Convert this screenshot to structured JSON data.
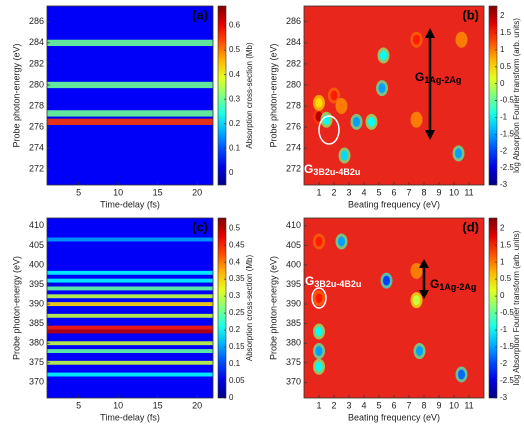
{
  "chart_data": [
    {
      "type": "heatmap",
      "title": "(a)",
      "xlabel": "Time-delay (fs)",
      "ylabel": "Probe photon-energy (eV)",
      "xlim": [
        1,
        22
      ],
      "xticks": [
        5,
        10,
        15,
        20
      ],
      "ylim": [
        270.5,
        287.5
      ],
      "yticks": [
        272,
        274,
        276,
        278,
        280,
        282,
        284,
        286
      ],
      "colorbar": {
        "label": "Absorption cross-section (Mb)",
        "lim": [
          -0.05,
          0.68
        ],
        "ticks": [
          0,
          0.1,
          0.2,
          0.3,
          0.4,
          0.5,
          0.6
        ]
      },
      "bands": [
        {
          "energy": 284,
          "value": 0.3
        },
        {
          "energy": 280,
          "value": 0.3
        },
        {
          "energy": 277.3,
          "value": 0.3
        },
        {
          "energy": 276.5,
          "value": 0.55
        }
      ]
    },
    {
      "type": "peaks",
      "title": "(b)",
      "xlabel": "Beating frequency (eV)",
      "ylabel": "Probe photon-energy (eV)",
      "xlim": [
        0,
        12
      ],
      "xticks": [
        1,
        2,
        3,
        4,
        5,
        6,
        7,
        8,
        9,
        10,
        11
      ],
      "ylim": [
        270.5,
        287.5
      ],
      "yticks": [
        272,
        274,
        276,
        278,
        280,
        282,
        284,
        286
      ],
      "colorbar": {
        "label": "log Absorption Fourier transform (arb. units)",
        "lim": [
          -3,
          2.3
        ],
        "ticks": [
          -3,
          -2.5,
          -2,
          -1.5,
          -1,
          -0.5,
          0,
          0.5,
          1,
          1.5,
          2
        ]
      },
      "peaks": [
        {
          "x": 1,
          "y": 277,
          "value": 2
        },
        {
          "x": 1,
          "y": 278.3,
          "value": 0.5
        },
        {
          "x": 2,
          "y": 279,
          "value": 1.5
        },
        {
          "x": 2.5,
          "y": 278,
          "value": 1
        },
        {
          "x": 1.5,
          "y": 276.7,
          "value": -1
        },
        {
          "x": 3.5,
          "y": 276.5,
          "value": -1.5
        },
        {
          "x": 7.5,
          "y": 284.3,
          "value": 1.5
        },
        {
          "x": 7.5,
          "y": 276.7,
          "value": 1
        },
        {
          "x": 10.5,
          "y": 284.3,
          "value": 1
        },
        {
          "x": 5.3,
          "y": 282.8,
          "value": -1
        },
        {
          "x": 4.5,
          "y": 276.5,
          "value": -1
        },
        {
          "x": 2.7,
          "y": 273.3,
          "value": -1.2
        },
        {
          "x": 10.3,
          "y": 273.5,
          "value": -1.5
        },
        {
          "x": 5.2,
          "y": 279.7,
          "value": -1.5
        }
      ],
      "annotations": [
        {
          "text": "G",
          "sub": "3B2u-4B2u"
        },
        {
          "text": "G",
          "sub": "1Ag-2Ag"
        }
      ]
    },
    {
      "type": "heatmap",
      "title": "(c)",
      "xlabel": "Time-delay (fs)",
      "ylabel": "Probe photon-energy (eV)",
      "xlim": [
        1,
        22
      ],
      "xticks": [
        5,
        10,
        15,
        20
      ],
      "ylim": [
        366,
        412
      ],
      "yticks": [
        370,
        375,
        380,
        385,
        390,
        395,
        400,
        405,
        410
      ],
      "colorbar": {
        "label": "Absorption cross-section (Mb)",
        "lim": [
          0,
          0.53
        ],
        "ticks": [
          0,
          0.05,
          0.1,
          0.15,
          0.2,
          0.25,
          0.3,
          0.35,
          0.4,
          0.45,
          0.5
        ]
      },
      "bands": [
        {
          "energy": 406.5,
          "value": 0.15
        },
        {
          "energy": 398,
          "value": 0.2
        },
        {
          "energy": 396,
          "value": 0.2
        },
        {
          "energy": 394,
          "value": 0.25
        },
        {
          "energy": 392,
          "value": 0.3
        },
        {
          "energy": 390,
          "value": 0.35
        },
        {
          "energy": 387,
          "value": 0.3
        },
        {
          "energy": 384,
          "value": 0.45
        },
        {
          "energy": 383,
          "value": 0.5
        },
        {
          "energy": 380,
          "value": 0.3
        },
        {
          "energy": 378,
          "value": 0.25
        },
        {
          "energy": 375,
          "value": 0.3
        },
        {
          "energy": 372,
          "value": 0.2
        }
      ]
    },
    {
      "type": "peaks",
      "title": "(d)",
      "xlabel": "Beating frequency (eV)",
      "ylabel": "Probe photon-energy (eV)",
      "xlim": [
        0,
        12
      ],
      "xticks": [
        1,
        2,
        3,
        4,
        5,
        6,
        7,
        8,
        9,
        10,
        11
      ],
      "ylim": [
        366,
        412
      ],
      "yticks": [
        370,
        375,
        380,
        385,
        390,
        395,
        400,
        405,
        410
      ],
      "colorbar": {
        "label": "log Absorption Fourier transform (arb. units)",
        "lim": [
          -3,
          2.3
        ],
        "ticks": [
          -3,
          -2.5,
          -2,
          -1.5,
          -1,
          -0.5,
          0,
          0.5,
          1,
          1.5,
          2
        ]
      },
      "peaks": [
        {
          "x": 1,
          "y": 406,
          "value": 1.5
        },
        {
          "x": 1,
          "y": 391.5,
          "value": 1.5
        },
        {
          "x": 1,
          "y": 383,
          "value": -1
        },
        {
          "x": 1,
          "y": 374,
          "value": -1
        },
        {
          "x": 1,
          "y": 378,
          "value": -1.5
        },
        {
          "x": 7.5,
          "y": 398.5,
          "value": 1
        },
        {
          "x": 7.5,
          "y": 391,
          "value": 0
        },
        {
          "x": 7.7,
          "y": 378,
          "value": -1.5
        },
        {
          "x": 2.5,
          "y": 406,
          "value": -1.5
        },
        {
          "x": 10.5,
          "y": 372,
          "value": -1.8
        },
        {
          "x": 5.5,
          "y": 396,
          "value": -2
        }
      ],
      "annotations": [
        {
          "text": "G",
          "sub": "3B2u-4B2u"
        },
        {
          "text": "G",
          "sub": "1Ag-2Ag"
        }
      ]
    }
  ]
}
